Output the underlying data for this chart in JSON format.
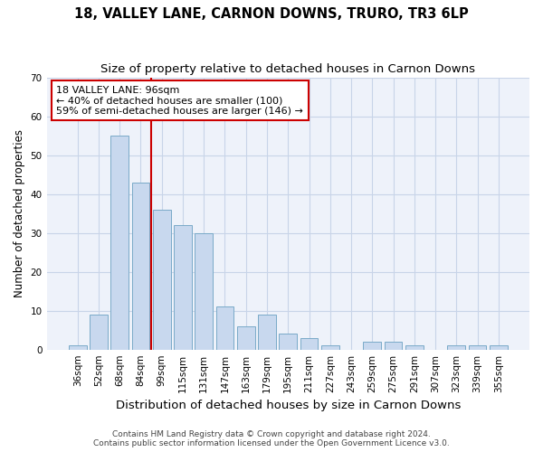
{
  "title": "18, VALLEY LANE, CARNON DOWNS, TRURO, TR3 6LP",
  "subtitle": "Size of property relative to detached houses in Carnon Downs",
  "xlabel": "Distribution of detached houses by size in Carnon Downs",
  "ylabel": "Number of detached properties",
  "categories": [
    "36sqm",
    "52sqm",
    "68sqm",
    "84sqm",
    "99sqm",
    "115sqm",
    "131sqm",
    "147sqm",
    "163sqm",
    "179sqm",
    "195sqm",
    "211sqm",
    "227sqm",
    "243sqm",
    "259sqm",
    "275sqm",
    "291sqm",
    "307sqm",
    "323sqm",
    "339sqm",
    "355sqm"
  ],
  "values": [
    1,
    9,
    55,
    43,
    36,
    32,
    30,
    11,
    6,
    9,
    4,
    3,
    1,
    0,
    2,
    2,
    1,
    0,
    1,
    1,
    1
  ],
  "bar_color": "#c8d8ee",
  "bar_edge_color": "#7aaac8",
  "vline_index": 4,
  "vline_color": "#cc0000",
  "annotation_text": "18 VALLEY LANE: 96sqm\n← 40% of detached houses are smaller (100)\n59% of semi-detached houses are larger (146) →",
  "annotation_box_color": "#ffffff",
  "annotation_box_edge": "#cc0000",
  "ylim": [
    0,
    70
  ],
  "yticks": [
    0,
    10,
    20,
    30,
    40,
    50,
    60,
    70
  ],
  "grid_color": "#c8d4e8",
  "bg_color": "#eef2fa",
  "footer": "Contains HM Land Registry data © Crown copyright and database right 2024.\nContains public sector information licensed under the Open Government Licence v3.0.",
  "title_fontsize": 10.5,
  "subtitle_fontsize": 9.5,
  "xlabel_fontsize": 9.5,
  "ylabel_fontsize": 8.5,
  "tick_fontsize": 7.5,
  "annotation_fontsize": 8,
  "footer_fontsize": 6.5
}
